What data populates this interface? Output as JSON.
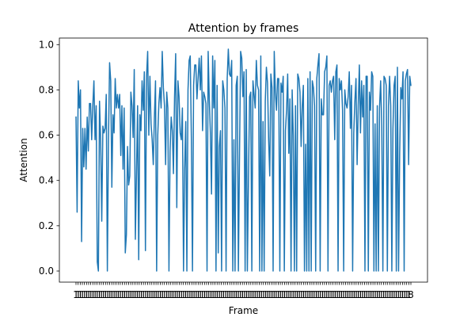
{
  "chart_data": {
    "type": "line",
    "title": "Attention by frames",
    "xlabel": "Frame",
    "ylabel": "Attention",
    "ylim": [
      -0.049,
      1.029
    ],
    "yticks": [
      0.0,
      0.2,
      0.4,
      0.6,
      0.8,
      1.0
    ],
    "ytick_labels": [
      "0.0",
      "0.2",
      "0.4",
      "0.6",
      "0.8",
      "1.0"
    ],
    "xtick_count": 160,
    "xtick_first_label": "1",
    "xtick_last_label": "8",
    "grid": false,
    "legend": "none",
    "color": "#1f77b4",
    "series": [
      {
        "values": [
          0.68,
          0.26,
          0.84,
          0.72,
          0.8,
          0.13,
          0.63,
          0.46,
          0.63,
          0.45,
          0.68,
          0.53,
          0.74,
          0.74,
          0.58,
          0.73,
          0.84,
          0.58,
          0.73,
          0.04,
          0.0,
          0.75,
          0.58,
          0.22,
          0.64,
          0.61,
          0.63,
          0.78,
          0.0,
          0.58,
          0.92,
          0.84,
          0.37,
          0.69,
          0.61,
          0.85,
          0.72,
          0.78,
          0.72,
          0.78,
          0.51,
          0.73,
          0.45,
          0.72,
          0.08,
          0.16,
          0.55,
          0.38,
          0.42,
          0.79,
          0.73,
          0.59,
          0.89,
          0.14,
          0.43,
          0.73,
          0.05,
          0.69,
          0.62,
          0.84,
          0.71,
          0.88,
          0.09,
          0.86,
          0.97,
          0.6,
          0.86,
          0.65,
          0.58,
          0.47,
          0.68,
          0.84,
          0.0,
          0.6,
          0.74,
          0.81,
          0.72,
          0.97,
          0.81,
          0.73,
          0.47,
          0.79,
          0.72,
          0.0,
          0.53,
          0.68,
          0.62,
          0.43,
          0.77,
          0.96,
          0.28,
          0.84,
          0.77,
          0.61,
          0.58,
          0.72,
          0.0,
          0.45,
          0.66,
          0.0,
          0.8,
          0.93,
          0.95,
          0.59,
          0.0,
          0.82,
          0.91,
          0.91,
          0.76,
          0.85,
          0.94,
          0.8,
          0.95,
          0.62,
          0.79,
          0.77,
          0.74,
          0.0,
          0.97,
          0.76,
          0.61,
          0.34,
          0.95,
          0.72,
          0.93,
          0.0,
          0.82,
          0.08,
          0.55,
          0.62,
          0.0,
          0.84,
          0.8,
          0.72,
          0.0,
          0.85,
          0.98,
          0.87,
          0.86,
          0.93,
          0.0,
          0.58,
          0.0,
          0.82,
          0.86,
          0.0,
          0.52,
          0.97,
          0.94,
          0.77,
          0.88,
          0.0,
          0.89,
          0.0,
          0.41,
          0.77,
          0.79,
          0.0,
          0.84,
          0.78,
          0.72,
          0.93,
          0.82,
          0.8,
          0.0,
          0.95,
          0.0,
          0.66,
          0.0,
          0.75,
          0.9,
          0.83,
          0.58,
          0.42,
          0.87,
          0.81,
          0.0,
          0.97,
          0.79,
          0.71,
          0.85,
          0.85,
          0.0,
          0.83,
          0.79,
          0.86,
          0.0,
          0.62,
          0.71,
          0.87,
          0.52,
          0.76,
          0.0,
          0.8,
          0.6,
          0.0,
          0.73,
          0.0,
          0.87,
          0.85,
          0.79,
          0.55,
          0.73,
          0.82,
          0.0,
          0.56,
          0.0,
          0.85,
          0.0,
          0.88,
          0.0,
          0.84,
          0.81,
          0.73,
          0.0,
          0.85,
          0.91,
          0.96,
          0.0,
          0.76,
          0.69,
          0.69,
          0.88,
          0.9,
          0.95,
          0.0,
          0.82,
          0.84,
          0.79,
          0.84,
          0.86,
          0.58,
          0.88,
          0.91,
          0.0,
          0.85,
          0.8,
          0.84,
          0.71,
          0.0,
          0.8,
          0.74,
          0.72,
          0.77,
          0.88,
          0.63,
          0.82,
          0.0,
          0.61,
          0.75,
          0.85,
          0.47,
          0.73,
          0.91,
          0.61,
          0.84,
          0.68,
          0.82,
          0.0,
          0.86,
          0.86,
          0.0,
          0.79,
          0.71,
          0.88,
          0.86,
          0.0,
          0.65,
          0.0,
          0.73,
          0.0,
          0.72,
          0.84,
          0.64,
          0.0,
          0.86,
          0.85,
          0.82,
          0.0,
          0.73,
          0.86,
          0.73,
          0.0,
          0.63,
          0.82,
          0.86,
          0.0,
          0.9,
          0.0,
          0.52,
          0.81,
          0.76,
          0.88,
          0.0,
          0.84,
          0.87,
          0.89,
          0.47,
          0.86,
          0.82
        ]
      }
    ]
  }
}
